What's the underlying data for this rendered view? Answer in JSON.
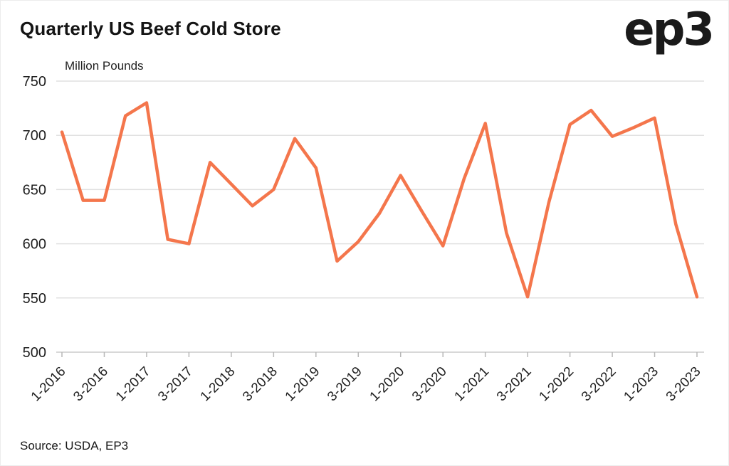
{
  "header": {
    "title": "Quarterly US Beef Cold Store",
    "logo": "ep3"
  },
  "chart_data": {
    "type": "line",
    "title": "Quarterly US Beef Cold Store",
    "xlabel": "",
    "ylabel": "Million Pounds",
    "ylim": [
      500,
      750
    ],
    "yticks": [
      500,
      550,
      600,
      650,
      700,
      750
    ],
    "grid": true,
    "legend_position": "none",
    "line_color": "#F4764C",
    "x": [
      "1-2016",
      "2-2016",
      "3-2016",
      "4-2016",
      "1-2017",
      "2-2017",
      "3-2017",
      "4-2017",
      "1-2018",
      "2-2018",
      "3-2018",
      "4-2018",
      "1-2019",
      "2-2019",
      "3-2019",
      "4-2019",
      "1-2020",
      "2-2020",
      "3-2020",
      "4-2020",
      "1-2021",
      "2-2021",
      "3-2021",
      "4-2021",
      "1-2022",
      "2-2022",
      "3-2022",
      "4-2022",
      "1-2023",
      "2-2023",
      "3-2023"
    ],
    "values": [
      703,
      640,
      640,
      718,
      730,
      604,
      600,
      675,
      655,
      635,
      650,
      697,
      670,
      584,
      602,
      628,
      663,
      630,
      598,
      660,
      711,
      610,
      551,
      638,
      710,
      723,
      699,
      707,
      716,
      618,
      551
    ],
    "x_tick_labels": [
      "1-2016",
      "3-2016",
      "1-2017",
      "3-2017",
      "1-2018",
      "3-2018",
      "1-2019",
      "3-2019",
      "1-2020",
      "3-2020",
      "1-2021",
      "3-2021",
      "1-2022",
      "3-2022",
      "1-2023",
      "3-2023"
    ]
  },
  "footer": {
    "source": "Source: USDA, EP3"
  }
}
